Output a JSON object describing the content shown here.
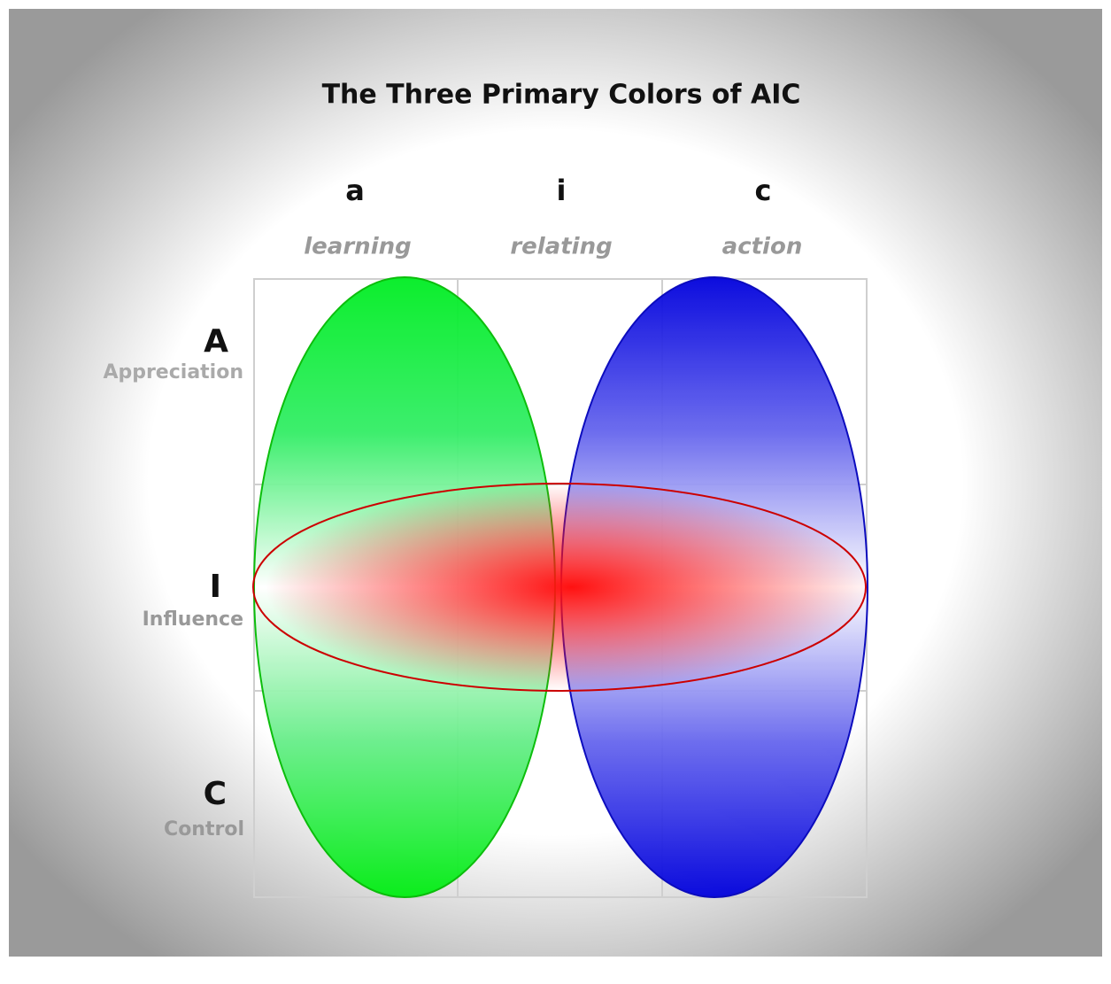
{
  "title": "The Three Primary Colors of AIC",
  "columns": [
    {
      "letter": "a",
      "label": "learning"
    },
    {
      "letter": "i",
      "label": "relating"
    },
    {
      "letter": "c",
      "label": "action"
    }
  ],
  "rows": [
    {
      "letter": "A",
      "label": "Appreciation"
    },
    {
      "letter": "I",
      "label": "Influence"
    },
    {
      "letter": "C",
      "label": "Control"
    }
  ]
}
